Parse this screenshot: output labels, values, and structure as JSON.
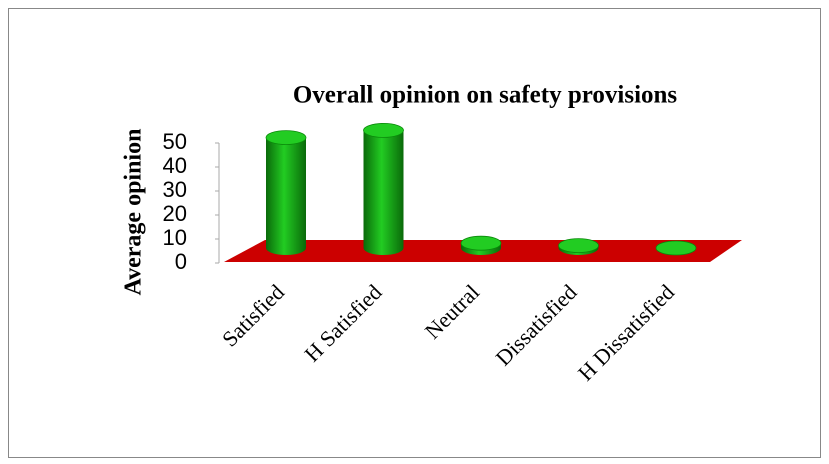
{
  "chart_data": {
    "type": "bar3d",
    "title": "Overall opinion on safety provisions",
    "y_label": "Average opinion",
    "categories": [
      "Satisfied",
      "H Satisfied",
      "Neutral",
      "Dissatisfied",
      "H Dissatisfied"
    ],
    "values": [
      46,
      49,
      2,
      1,
      0
    ],
    "color": "#22cc22",
    "floor_color": "#cc0000",
    "ylim": [
      0,
      50
    ],
    "yticks": [
      0,
      10,
      20,
      30,
      40,
      50
    ]
  }
}
